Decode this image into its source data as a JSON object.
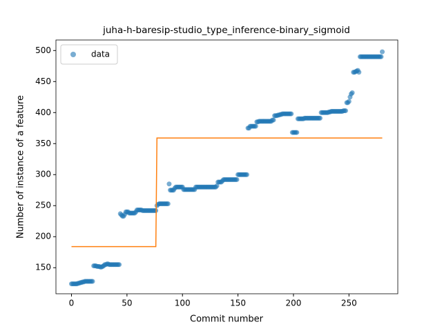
{
  "chart_data": {
    "type": "scatter",
    "title": "juha-h-baresip-studio_type_inference-binary_sigmoid",
    "x_label": "Commit number",
    "y_label": "Number of instance of a feature",
    "xlim": [
      -14,
      294
    ],
    "ylim": [
      108,
      517
    ],
    "xticks": [
      0,
      50,
      100,
      150,
      200,
      250
    ],
    "yticks": [
      150,
      200,
      250,
      300,
      350,
      400,
      450,
      500
    ],
    "legend": "upper left",
    "series": [
      {
        "name": "data",
        "type": "scatter",
        "color": "#1f77b4",
        "x": [
          0,
          1,
          2,
          3,
          4,
          5,
          6,
          7,
          8,
          9,
          10,
          11,
          12,
          13,
          14,
          15,
          16,
          17,
          18,
          19,
          20,
          21,
          22,
          23,
          24,
          25,
          26,
          27,
          28,
          29,
          30,
          31,
          32,
          33,
          34,
          35,
          36,
          37,
          38,
          39,
          40,
          41,
          42,
          43,
          44,
          45,
          46,
          47,
          48,
          49,
          50,
          51,
          52,
          53,
          54,
          55,
          56,
          57,
          58,
          59,
          60,
          61,
          62,
          63,
          64,
          65,
          66,
          67,
          68,
          69,
          70,
          71,
          72,
          73,
          74,
          75,
          76,
          77,
          78,
          79,
          80,
          81,
          82,
          83,
          84,
          85,
          86,
          87,
          88,
          89,
          90,
          91,
          92,
          93,
          94,
          95,
          96,
          97,
          98,
          99,
          100,
          101,
          102,
          103,
          104,
          105,
          106,
          107,
          108,
          109,
          110,
          111,
          112,
          113,
          114,
          115,
          116,
          117,
          118,
          119,
          120,
          121,
          122,
          123,
          124,
          125,
          126,
          127,
          128,
          129,
          130,
          131,
          132,
          133,
          134,
          135,
          136,
          137,
          138,
          139,
          140,
          141,
          142,
          143,
          144,
          145,
          146,
          147,
          148,
          149,
          150,
          151,
          152,
          153,
          154,
          155,
          156,
          157,
          158,
          159,
          160,
          161,
          162,
          163,
          164,
          165,
          166,
          167,
          168,
          169,
          170,
          171,
          172,
          173,
          174,
          175,
          176,
          177,
          178,
          179,
          180,
          181,
          182,
          183,
          184,
          185,
          186,
          187,
          188,
          189,
          190,
          191,
          192,
          193,
          194,
          195,
          196,
          197,
          198,
          199,
          200,
          201,
          202,
          203,
          204,
          205,
          206,
          207,
          208,
          209,
          210,
          211,
          212,
          213,
          214,
          215,
          216,
          217,
          218,
          219,
          220,
          221,
          222,
          223,
          224,
          225,
          226,
          227,
          228,
          229,
          230,
          231,
          232,
          233,
          234,
          235,
          236,
          237,
          238,
          239,
          240,
          241,
          242,
          243,
          244,
          245,
          246,
          247,
          248,
          249,
          250,
          251,
          252,
          253,
          254,
          255,
          256,
          257,
          258,
          259,
          260,
          261,
          262,
          263,
          264,
          265,
          266,
          267,
          268,
          269,
          270,
          271,
          272,
          273,
          274,
          275,
          276,
          277,
          278,
          279,
          280
        ],
        "values": [
          124,
          124,
          124,
          124,
          124,
          124,
          125,
          125,
          126,
          126,
          127,
          127,
          128,
          128,
          128,
          128,
          128,
          128,
          128,
          128,
          153,
          153,
          153,
          152,
          152,
          152,
          151,
          151,
          152,
          153,
          155,
          155,
          156,
          156,
          155,
          155,
          155,
          155,
          155,
          155,
          155,
          155,
          155,
          155,
          237,
          235,
          233,
          233,
          236,
          240,
          240,
          240,
          238,
          238,
          238,
          238,
          238,
          238,
          240,
          243,
          243,
          243,
          243,
          243,
          242,
          242,
          242,
          242,
          242,
          242,
          242,
          242,
          242,
          242,
          242,
          242,
          242,
          250,
          252,
          253,
          253,
          253,
          253,
          253,
          253,
          253,
          253,
          253,
          285,
          275,
          275,
          275,
          275,
          278,
          280,
          280,
          280,
          280,
          280,
          280,
          280,
          276,
          276,
          276,
          276,
          276,
          276,
          276,
          276,
          276,
          276,
          276,
          280,
          280,
          280,
          280,
          280,
          280,
          280,
          280,
          280,
          280,
          280,
          280,
          280,
          280,
          280,
          280,
          280,
          280,
          280,
          282,
          288,
          288,
          288,
          288,
          290,
          292,
          292,
          292,
          292,
          292,
          292,
          292,
          292,
          292,
          292,
          292,
          292,
          292,
          300,
          300,
          300,
          300,
          300,
          300,
          300,
          300,
          300,
          375,
          375,
          378,
          378,
          378,
          378,
          378,
          378,
          385,
          385,
          386,
          386,
          386,
          386,
          386,
          386,
          386,
          386,
          386,
          386,
          386,
          386,
          388,
          388,
          395,
          395,
          395,
          396,
          396,
          397,
          397,
          398,
          398,
          398,
          398,
          398,
          398,
          398,
          398,
          398,
          368,
          368,
          368,
          368,
          368,
          390,
          390,
          390,
          390,
          390,
          390,
          391,
          391,
          391,
          391,
          391,
          391,
          391,
          391,
          391,
          391,
          391,
          391,
          391,
          391,
          391,
          400,
          400,
          400,
          400,
          400,
          400,
          400,
          401,
          401,
          402,
          402,
          402,
          402,
          402,
          402,
          402,
          402,
          402,
          402,
          402,
          403,
          403,
          403,
          416,
          416,
          418,
          425,
          430,
          432,
          465,
          465,
          466,
          467,
          468,
          465,
          490,
          490,
          490,
          490,
          490,
          490,
          490,
          490,
          490,
          490,
          490,
          490,
          490,
          490,
          490,
          490,
          490,
          490,
          490,
          490,
          498
        ]
      },
      {
        "type": "line",
        "color": "#ff7f0e",
        "x": [
          0,
          76,
          77,
          280
        ],
        "values": [
          184,
          184,
          359,
          359
        ]
      }
    ]
  }
}
